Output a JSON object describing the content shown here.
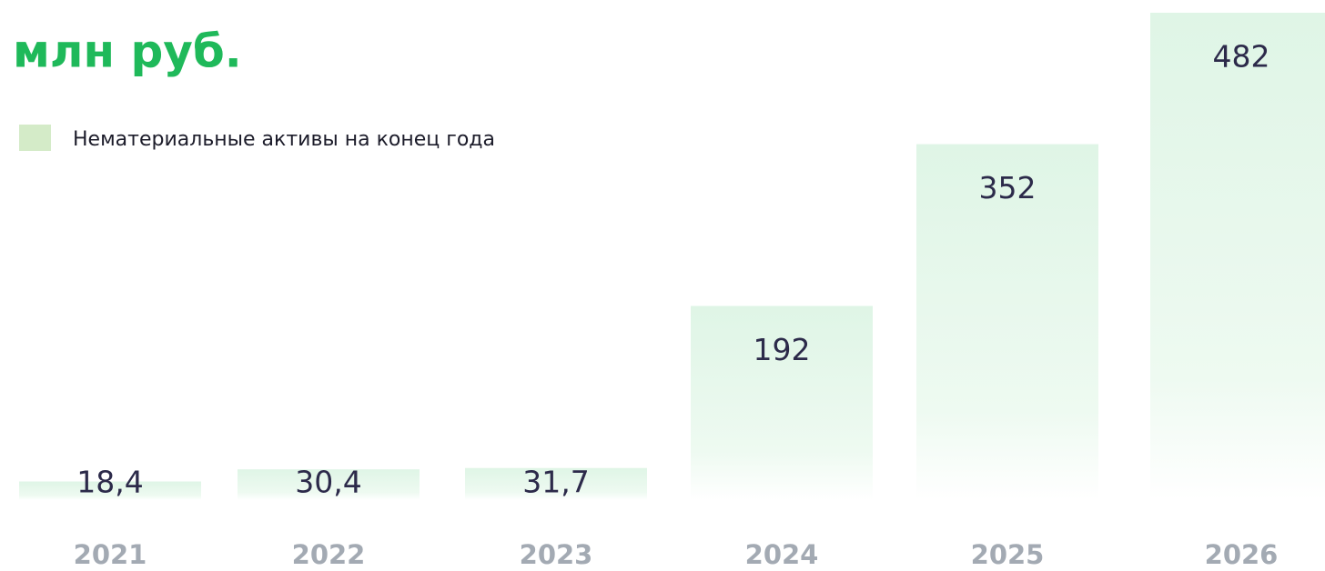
{
  "chart_data": {
    "type": "bar",
    "title": "млн руб.",
    "legend": "Нематериальные активы на конец года",
    "color": "#dff5e6",
    "categories": [
      "2021",
      "2022",
      "2023",
      "2024",
      "2025",
      "2026"
    ],
    "values": [
      18.4,
      30.4,
      31.7,
      192,
      352,
      482
    ],
    "value_labels": [
      "18,4",
      "30,4",
      "31,7",
      "192",
      "352",
      "482"
    ]
  }
}
